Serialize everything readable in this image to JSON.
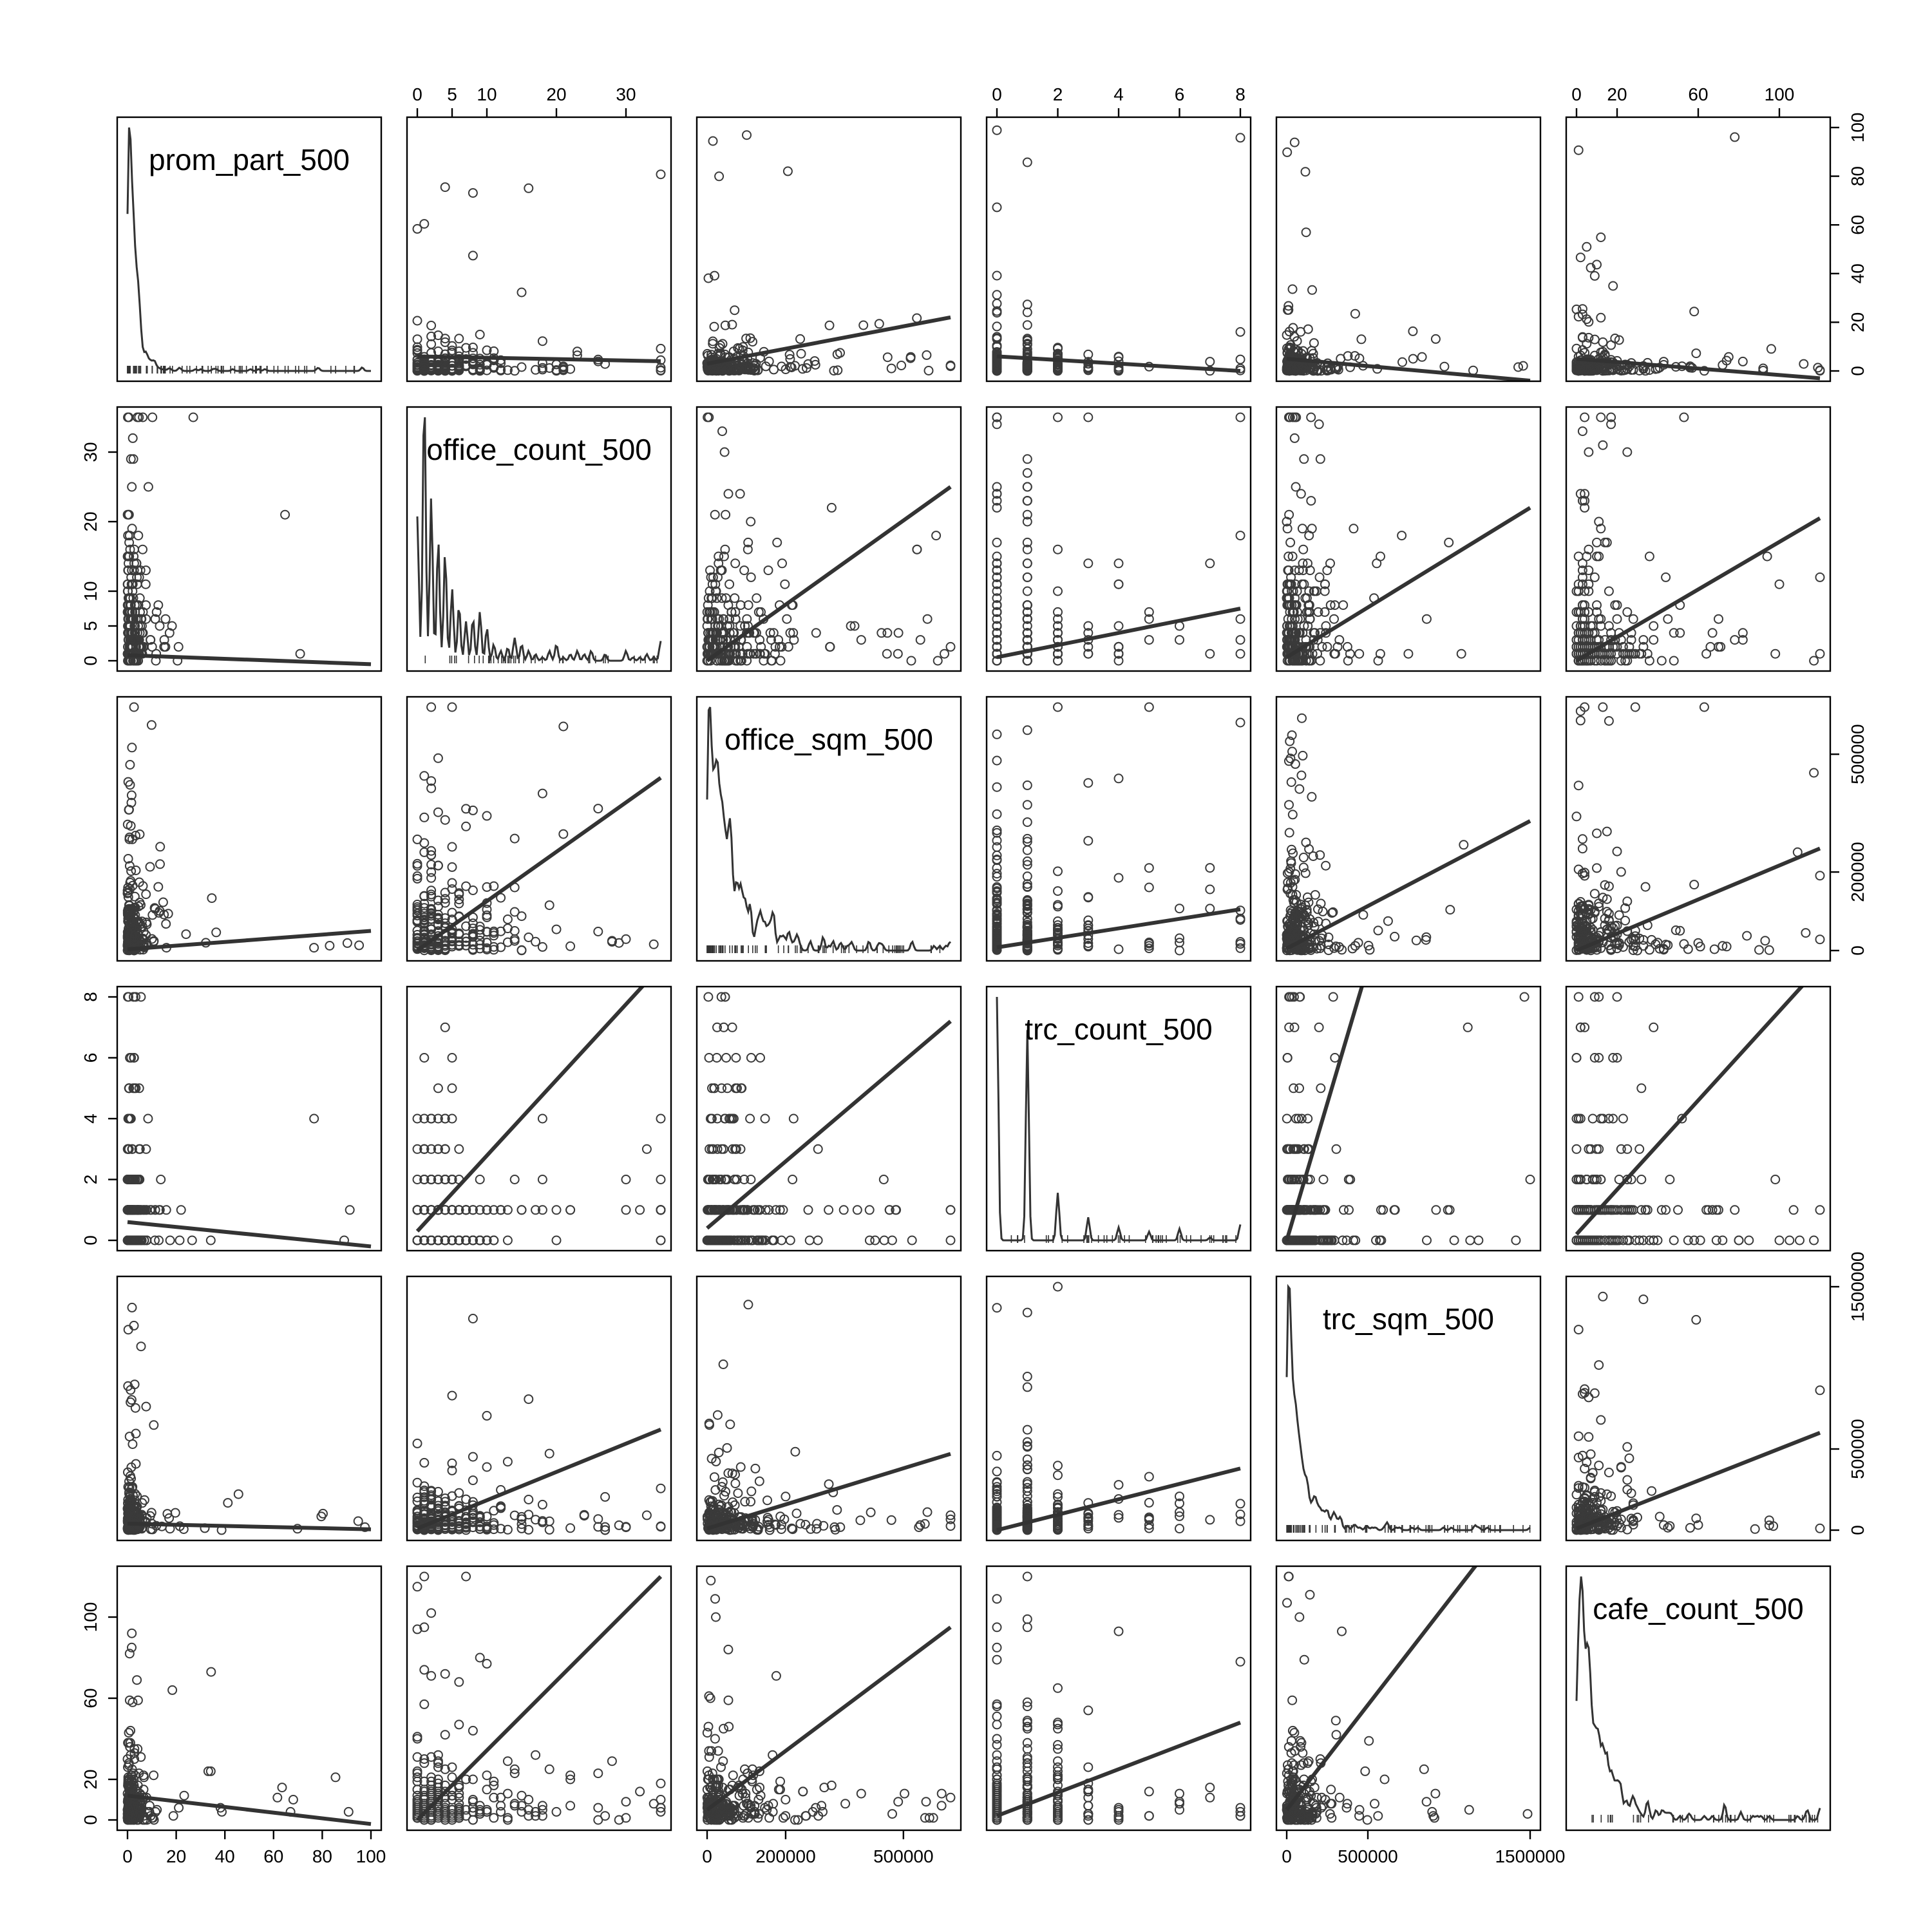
{
  "chart_data": {
    "type": "scatter",
    "plot_kind": "scatterplot matrix (pairs) with linear fit lines; density curve with rug on diagonal",
    "variables": [
      {
        "name": "prom_part_500",
        "range": [
          0,
          100
        ],
        "ticks": [
          0,
          20,
          40,
          60,
          80,
          100
        ],
        "rug": "dense",
        "dist": {
          "kind": "lin",
          "mode": 2
        }
      },
      {
        "name": "office_count_500",
        "range": [
          0,
          35
        ],
        "ticks": [
          0,
          5,
          10,
          20,
          30
        ],
        "rug": "sparse",
        "dist": {
          "kind": "int",
          "mode": 4
        }
      },
      {
        "name": "office_sqm_500",
        "range": [
          0,
          620000
        ],
        "ticks": [
          0,
          200000,
          500000
        ],
        "rug": "dense",
        "dist": {
          "kind": "lin",
          "mode": 50000
        }
      },
      {
        "name": "trc_count_500",
        "range": [
          0,
          8
        ],
        "ticks": [
          0,
          2,
          4,
          6,
          8
        ],
        "rug": "sparse",
        "dist": {
          "kind": "int",
          "mode": 0.8
        }
      },
      {
        "name": "trc_sqm_500",
        "range": [
          0,
          1500000
        ],
        "ticks": [
          0,
          500000,
          1500000
        ],
        "rug": "dense",
        "dist": {
          "kind": "lin",
          "mode": 70000
        }
      },
      {
        "name": "cafe_count_500",
        "range": [
          0,
          120
        ],
        "ticks": [
          0,
          20,
          60,
          100
        ],
        "rug": "sparse",
        "dist": {
          "kind": "int",
          "mode": 8
        }
      }
    ],
    "axes": {
      "top": [
        {
          "col": 1,
          "ticks": [
            0,
            5,
            10,
            20,
            30
          ]
        },
        {
          "col": 3,
          "ticks": [
            0,
            2,
            4,
            6,
            8
          ]
        },
        {
          "col": 5,
          "ticks": [
            0,
            20,
            60,
            100
          ]
        }
      ],
      "bottom": [
        {
          "col": 0,
          "ticks": [
            0,
            20,
            40,
            60,
            80,
            100
          ]
        },
        {
          "col": 2,
          "ticks": [
            0,
            200000,
            500000
          ]
        },
        {
          "col": 4,
          "ticks": [
            0,
            500000,
            1500000
          ]
        }
      ],
      "left": [
        {
          "row": 1,
          "ticks": [
            0,
            5,
            10,
            20,
            30
          ]
        },
        {
          "row": 3,
          "ticks": [
            0,
            2,
            4,
            6,
            8
          ]
        },
        {
          "row": 5,
          "ticks": [
            0,
            20,
            60,
            100
          ]
        }
      ],
      "right": [
        {
          "row": 0,
          "ticks": [
            0,
            20,
            40,
            60,
            80,
            100
          ]
        },
        {
          "row": 2,
          "ticks": [
            0,
            200000,
            500000
          ]
        },
        {
          "row": 4,
          "ticks": [
            0,
            500000,
            1500000
          ]
        }
      ]
    },
    "fit_lines": [
      {
        "x": "office_count_500",
        "y": "prom_part_500",
        "points": [
          [
            0,
            6
          ],
          [
            35,
            4
          ]
        ]
      },
      {
        "x": "office_sqm_500",
        "y": "prom_part_500",
        "points": [
          [
            0,
            3
          ],
          [
            620000,
            22
          ]
        ]
      },
      {
        "x": "trc_count_500",
        "y": "prom_part_500",
        "points": [
          [
            0,
            6
          ],
          [
            8,
            0
          ]
        ]
      },
      {
        "x": "trc_sqm_500",
        "y": "prom_part_500",
        "points": [
          [
            0,
            5
          ],
          [
            1500000,
            -4
          ]
        ]
      },
      {
        "x": "cafe_count_500",
        "y": "prom_part_500",
        "points": [
          [
            0,
            5
          ],
          [
            120,
            -3
          ]
        ]
      },
      {
        "x": "prom_part_500",
        "y": "office_count_500",
        "points": [
          [
            0,
            0.8
          ],
          [
            100,
            -0.5
          ]
        ]
      },
      {
        "x": "office_sqm_500",
        "y": "office_count_500",
        "points": [
          [
            0,
            0
          ],
          [
            620000,
            25
          ]
        ]
      },
      {
        "x": "trc_count_500",
        "y": "office_count_500",
        "points": [
          [
            0,
            0.5
          ],
          [
            8,
            7.5
          ]
        ]
      },
      {
        "x": "trc_sqm_500",
        "y": "office_count_500",
        "points": [
          [
            0,
            0.5
          ],
          [
            1500000,
            22
          ]
        ]
      },
      {
        "x": "cafe_count_500",
        "y": "office_count_500",
        "points": [
          [
            0,
            0
          ],
          [
            120,
            20.5
          ]
        ]
      },
      {
        "x": "prom_part_500",
        "y": "office_sqm_500",
        "points": [
          [
            0,
            3000
          ],
          [
            100,
            50000
          ]
        ]
      },
      {
        "x": "office_count_500",
        "y": "office_sqm_500",
        "points": [
          [
            0,
            0
          ],
          [
            35,
            440000
          ]
        ]
      },
      {
        "x": "trc_count_500",
        "y": "office_sqm_500",
        "points": [
          [
            0,
            8000
          ],
          [
            8,
            105000
          ]
        ]
      },
      {
        "x": "trc_sqm_500",
        "y": "office_sqm_500",
        "points": [
          [
            0,
            5000
          ],
          [
            1500000,
            330000
          ]
        ]
      },
      {
        "x": "cafe_count_500",
        "y": "office_sqm_500",
        "points": [
          [
            0,
            0
          ],
          [
            120,
            260000
          ]
        ]
      },
      {
        "x": "prom_part_500",
        "y": "trc_count_500",
        "points": [
          [
            0,
            0.6
          ],
          [
            100,
            -0.2
          ]
        ]
      },
      {
        "x": "office_count_500",
        "y": "trc_count_500",
        "points": [
          [
            0,
            0.3
          ],
          [
            35,
            9
          ]
        ]
      },
      {
        "x": "office_sqm_500",
        "y": "trc_count_500",
        "points": [
          [
            0,
            0.4
          ],
          [
            620000,
            7.2
          ]
        ]
      },
      {
        "x": "trc_sqm_500",
        "y": "trc_count_500",
        "points": [
          [
            0,
            0
          ],
          [
            500000,
            9
          ]
        ]
      },
      {
        "x": "cafe_count_500",
        "y": "trc_count_500",
        "points": [
          [
            0,
            0.2
          ],
          [
            120,
            9
          ]
        ]
      },
      {
        "x": "prom_part_500",
        "y": "trc_sqm_500",
        "points": [
          [
            0,
            40000
          ],
          [
            100,
            5000
          ]
        ]
      },
      {
        "x": "office_count_500",
        "y": "trc_sqm_500",
        "points": [
          [
            0,
            10000
          ],
          [
            35,
            620000
          ]
        ]
      },
      {
        "x": "office_sqm_500",
        "y": "trc_sqm_500",
        "points": [
          [
            0,
            10000
          ],
          [
            620000,
            470000
          ]
        ]
      },
      {
        "x": "trc_count_500",
        "y": "trc_sqm_500",
        "points": [
          [
            0,
            0
          ],
          [
            8,
            380000
          ]
        ]
      },
      {
        "x": "cafe_count_500",
        "y": "trc_sqm_500",
        "points": [
          [
            0,
            10000
          ],
          [
            120,
            600000
          ]
        ]
      },
      {
        "x": "prom_part_500",
        "y": "cafe_count_500",
        "points": [
          [
            0,
            12
          ],
          [
            100,
            -2
          ]
        ]
      },
      {
        "x": "office_count_500",
        "y": "cafe_count_500",
        "points": [
          [
            0,
            0
          ],
          [
            35,
            120
          ]
        ]
      },
      {
        "x": "office_sqm_500",
        "y": "cafe_count_500",
        "points": [
          [
            0,
            5
          ],
          [
            620000,
            95
          ]
        ]
      },
      {
        "x": "trc_count_500",
        "y": "cafe_count_500",
        "points": [
          [
            0,
            2
          ],
          [
            8,
            48
          ]
        ]
      },
      {
        "x": "trc_sqm_500",
        "y": "cafe_count_500",
        "points": [
          [
            0,
            5
          ],
          [
            1500000,
            160
          ]
        ]
      }
    ],
    "grid": false,
    "legend": "none"
  }
}
